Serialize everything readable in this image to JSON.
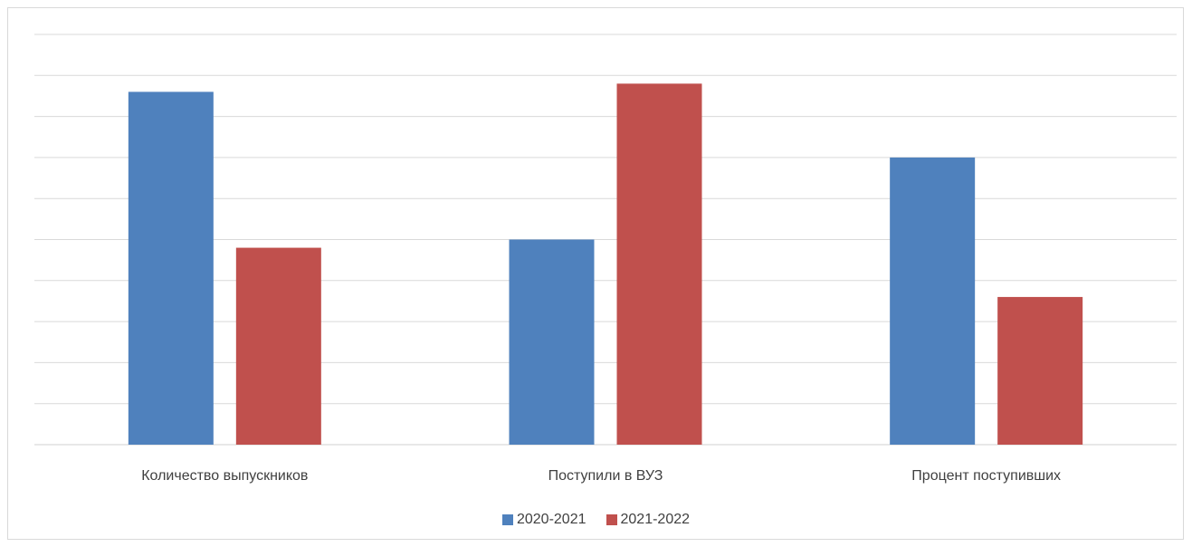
{
  "chart_data": {
    "type": "bar",
    "categories": [
      "Количество выпускников",
      "Поступили в ВУЗ",
      "Процент поступивших"
    ],
    "series": [
      {
        "name": "2020-2021",
        "color": "#4f81bd",
        "values": [
          8.6,
          5.0,
          7.0
        ]
      },
      {
        "name": "2021-2022",
        "color": "#c0504d",
        "values": [
          4.8,
          8.8,
          3.6
        ]
      }
    ],
    "ylim": [
      0,
      10
    ],
    "grid": true,
    "legend_position": "bottom"
  }
}
